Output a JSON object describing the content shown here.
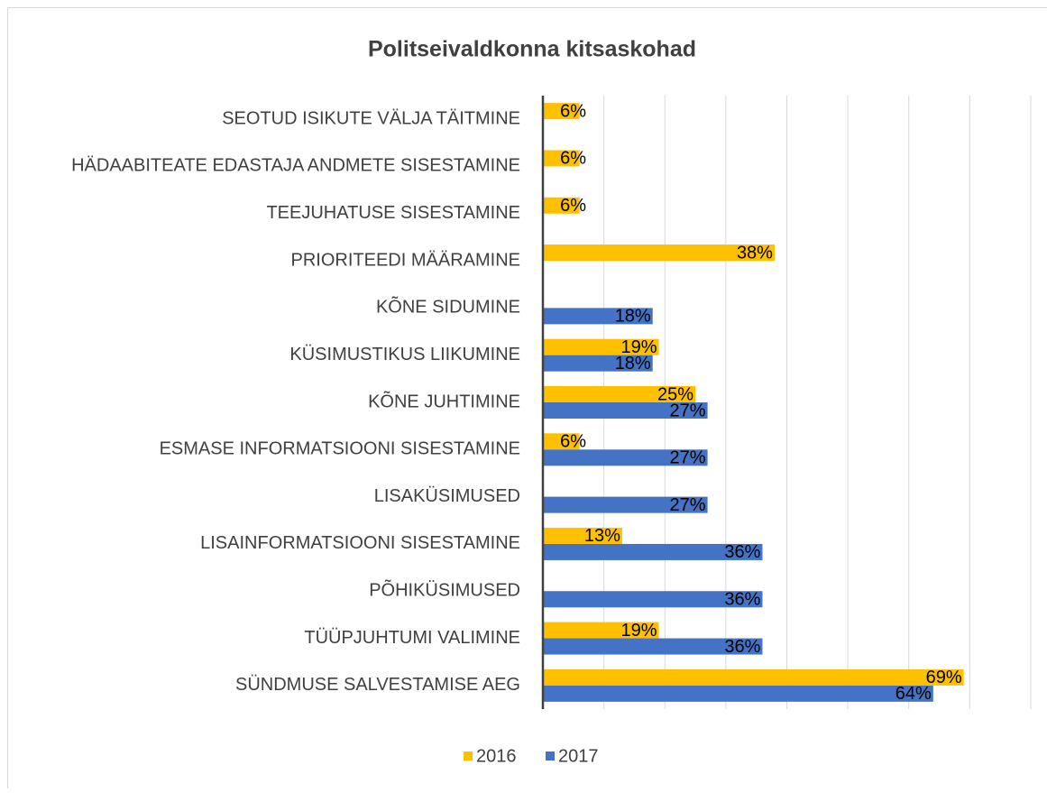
{
  "chart_data": {
    "type": "bar",
    "orientation": "horizontal",
    "title": "Politseivaldkonna kitsaskohad",
    "categories": [
      "SEOTUD ISIKUTE VÄLJA TÄITMINE",
      "HÄDAABITEATE EDASTAJA ANDMETE SISESTAMINE",
      "TEEJUHATUSE SISESTAMINE",
      "PRIORITEEDI MÄÄRAMINE",
      "KÕNE SIDUMINE",
      "KÜSIMUSTIKUS LIIKUMINE",
      "KÕNE JUHTIMINE",
      "ESMASE INFORMATSIOONI SISESTAMINE",
      "LISAKÜSIMUSED",
      "LISAINFORMATSIOONI SISESTAMINE",
      "PÕHIKÜSIMUSED",
      "TÜÜPJUHTUMI VALIMINE",
      "SÜNDMUSE SALVESTAMISE AEG"
    ],
    "series": [
      {
        "name": "2016",
        "color": "#FFC000",
        "values": [
          6,
          6,
          6,
          38,
          null,
          19,
          25,
          6,
          null,
          13,
          null,
          19,
          69
        ],
        "value_labels": [
          "6%",
          "6%",
          "6%",
          "38%",
          null,
          "19%",
          "25%",
          "6%",
          null,
          "13%",
          null,
          "19%",
          "69%"
        ]
      },
      {
        "name": "2017",
        "color": "#4472C4",
        "values": [
          null,
          null,
          null,
          null,
          18,
          18,
          27,
          27,
          27,
          36,
          36,
          36,
          64
        ],
        "value_labels": [
          null,
          null,
          null,
          null,
          "18%",
          "18%",
          "27%",
          "27%",
          "27%",
          "36%",
          "36%",
          "36%",
          "64%"
        ]
      }
    ],
    "xlim": [
      0,
      80
    ],
    "xticks": [
      0,
      10,
      20,
      30,
      40,
      50,
      60,
      70,
      80
    ],
    "grid": true,
    "legend": "bottom"
  }
}
